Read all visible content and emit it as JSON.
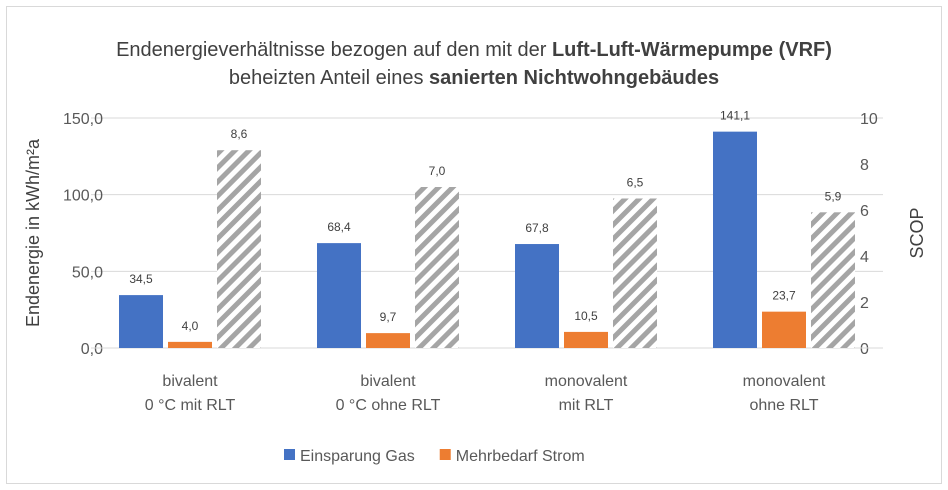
{
  "chart_data": {
    "type": "bar",
    "title": [
      [
        {
          "text": "Endenergieverhältnisse bezogen auf den mit der ",
          "bold": false
        },
        {
          "text": "Luft-Luft-Wärmepumpe (VRF)",
          "bold": true
        }
      ],
      [
        {
          "text": "beheizten Anteil eines ",
          "bold": false
        },
        {
          "text": "sanierten Nichtwohngebäudes",
          "bold": true
        }
      ]
    ],
    "ylabel": "Endenergie in kWh/m²a",
    "y2label": "SCOP",
    "categories": [
      [
        "bivalent",
        "0 °C mit RLT"
      ],
      [
        "bivalent",
        "0 °C ohne RLT"
      ],
      [
        "monovalent",
        "mit RLT"
      ],
      [
        "monovalent",
        "ohne RLT"
      ]
    ],
    "series": [
      {
        "name": "Einsparung Gas",
        "color": "#4472c4",
        "values": [
          34.5,
          68.4,
          67.8,
          141.1
        ],
        "value_labels": [
          "34,5",
          "68,4",
          "67,8",
          "141,1"
        ]
      },
      {
        "name": "Mehrbedarf Strom",
        "color": "#ed7d31",
        "values": [
          4.0,
          9.7,
          10.5,
          23.7
        ],
        "value_labels": [
          "4,0",
          "9,7",
          "10,5",
          "23,7"
        ]
      },
      {
        "color": "#a5a5a5",
        "hatch": true,
        "axis": "y2",
        "values": [
          8.6,
          7.0,
          6.5,
          5.9
        ],
        "value_labels": [
          "8,6",
          "7,0",
          "6,5",
          "5,9"
        ]
      }
    ],
    "ylim": [
      0,
      150
    ],
    "yticks": [
      {
        "value": 0,
        "label": "0,0"
      },
      {
        "value": 50,
        "label": "50,0"
      },
      {
        "value": 100,
        "label": "100,0"
      },
      {
        "value": 150,
        "label": "150,0"
      }
    ],
    "y2lim": [
      0,
      10
    ],
    "y2ticks": [
      0,
      2,
      4,
      6,
      8,
      10
    ],
    "grid": true,
    "legend": "bottom"
  }
}
